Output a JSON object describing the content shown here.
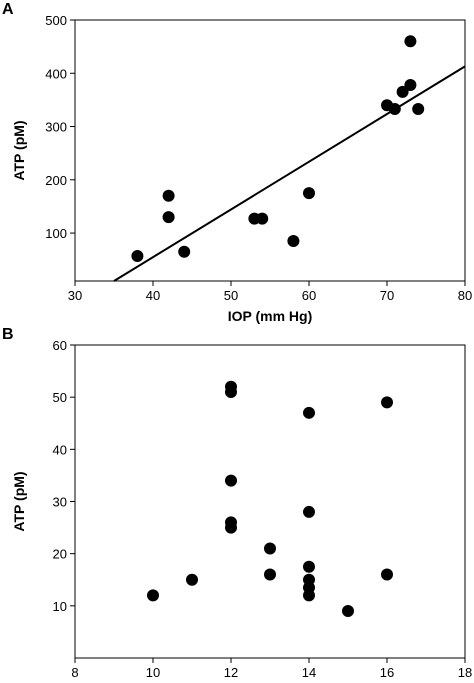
{
  "chart_data": [
    {
      "type": "scatter",
      "panel_label": "A",
      "xlabel": "IOP (mm Hg)",
      "ylabel": "ATP (pM)",
      "xlim": [
        30,
        80
      ],
      "xticks": [
        30,
        40,
        50,
        60,
        70,
        80
      ],
      "ylim": [
        10,
        500
      ],
      "yticks": [
        100,
        200,
        300,
        400,
        500
      ],
      "color": "#000000",
      "x": [
        38,
        42,
        42,
        44,
        53,
        54,
        58,
        60,
        70,
        71,
        72,
        73,
        73,
        74
      ],
      "y": [
        57,
        170,
        130,
        65,
        127,
        127,
        85,
        175,
        340,
        333,
        365,
        378,
        460,
        333
      ],
      "fit_line": {
        "x": [
          35,
          80
        ],
        "y": [
          10,
          413
        ]
      }
    },
    {
      "type": "scatter",
      "panel_label": "B",
      "xlabel": "IOP (mm Hg)",
      "ylabel": "ATP (pM)",
      "xlim": [
        8,
        18
      ],
      "xticks": [
        8,
        10,
        12,
        14,
        16,
        18
      ],
      "ylim": [
        0,
        60
      ],
      "yticks": [
        10,
        20,
        30,
        40,
        50,
        60
      ],
      "color": "#000000",
      "x": [
        10,
        11,
        12,
        12,
        12,
        12,
        12,
        13,
        13,
        14,
        14,
        14,
        14,
        14,
        14,
        15,
        16,
        16
      ],
      "y": [
        12,
        15,
        52,
        51,
        34,
        26,
        25,
        21,
        16,
        47,
        28,
        17.5,
        15,
        13.5,
        12,
        9,
        49,
        16
      ]
    }
  ]
}
